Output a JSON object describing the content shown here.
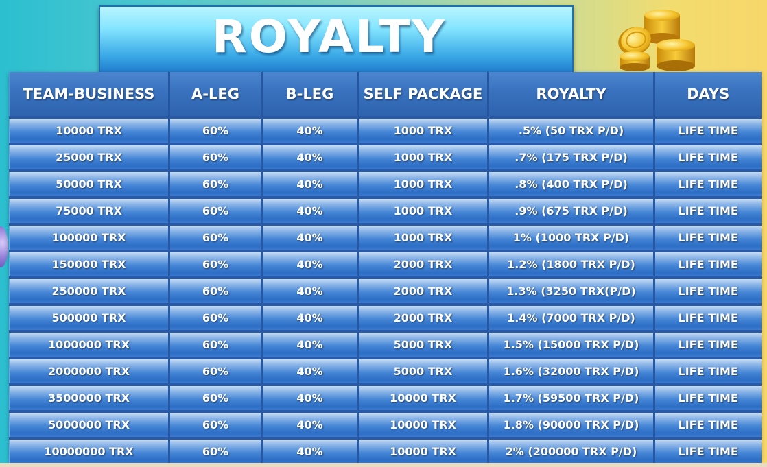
{
  "title": "ROYALTY",
  "table": {
    "headers": [
      "TEAM-BUSINESS",
      "A-LEG",
      "B-LEG",
      "SELF PACKAGE",
      "ROYALTY",
      "DAYS"
    ],
    "rows": [
      [
        "10000 TRX",
        "60%",
        "40%",
        "1000 TRX",
        ".5% (50 TRX P/D)",
        "LIFE TIME"
      ],
      [
        "25000 TRX",
        "60%",
        "40%",
        "1000 TRX",
        ".7% (175 TRX P/D)",
        "LIFE TIME"
      ],
      [
        "50000 TRX",
        "60%",
        "40%",
        "1000 TRX",
        ".8% (400 TRX P/D)",
        "LIFE TIME"
      ],
      [
        "75000 TRX",
        "60%",
        "40%",
        "1000 TRX",
        ".9% (675 TRX P/D)",
        "LIFE TIME"
      ],
      [
        "100000 TRX",
        "60%",
        "40%",
        "1000 TRX",
        "1% (1000 TRX P/D)",
        "LIFE TIME"
      ],
      [
        "150000 TRX",
        "60%",
        "40%",
        "2000 TRX",
        "1.2% (1800 TRX P/D)",
        "LIFE TIME"
      ],
      [
        "250000 TRX",
        "60%",
        "40%",
        "2000 TRX",
        "1.3% (3250 TRX(P/D)",
        "LIFE TIME"
      ],
      [
        "500000 TRX",
        "60%",
        "40%",
        "2000 TRX",
        "1.4% (7000 TRX P/D)",
        "LIFE TIME"
      ],
      [
        "1000000 TRX",
        "60%",
        "40%",
        "5000 TRX",
        "1.5% (15000 TRX P/D)",
        "LIFE TIME"
      ],
      [
        "2000000 TRX",
        "60%",
        "40%",
        "5000 TRX",
        "1.6% (32000 TRX P/D)",
        "LIFE TIME"
      ],
      [
        "3500000 TRX",
        "60%",
        "40%",
        "10000 TRX",
        "1.7% (59500 TRX P/D)",
        "LIFE TIME"
      ],
      [
        "5000000 TRX",
        "60%",
        "40%",
        "10000 TRX",
        "1.8% (90000 TRX P/D)",
        "LIFE TIME"
      ],
      [
        "10000000 TRX",
        "60%",
        "40%",
        "10000 TRX",
        "2% (200000 TRX P/D)",
        "LIFE TIME"
      ]
    ]
  },
  "decor": {
    "coins_icon": "gold-coins-icon",
    "coin_color": "#f2b81c"
  }
}
